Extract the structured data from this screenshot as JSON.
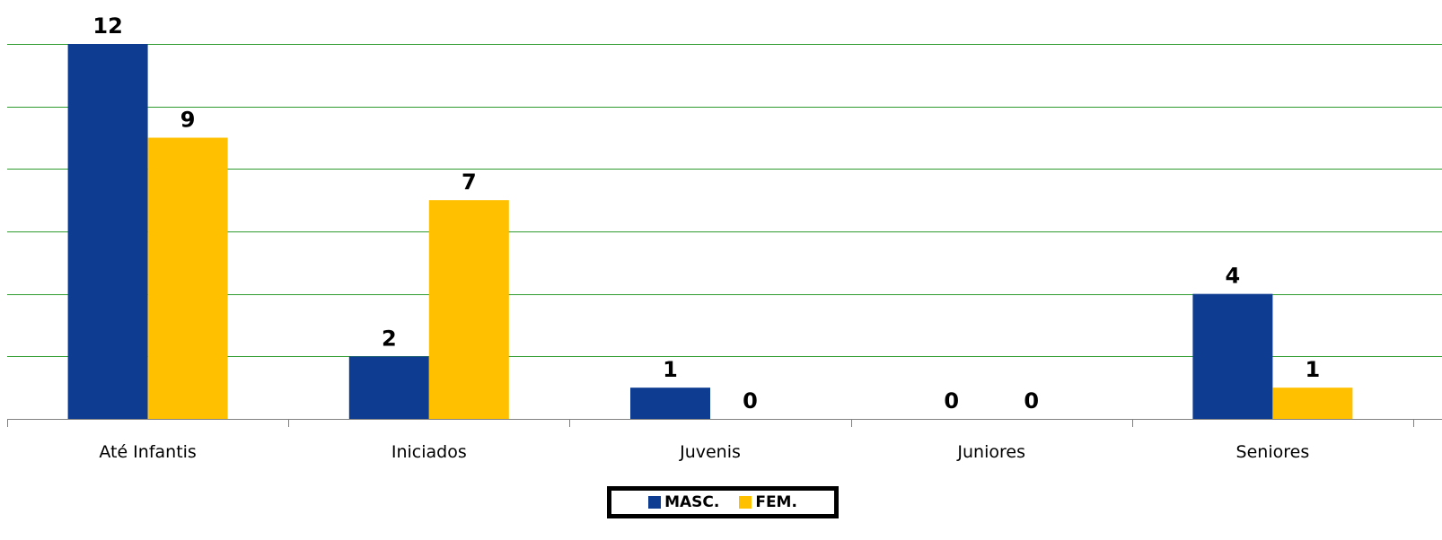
{
  "chart_data": {
    "type": "bar",
    "title": "",
    "xlabel": "",
    "ylabel": "",
    "categories": [
      "Até Infantis",
      "Iniciados",
      "Juvenis",
      "Juniores",
      "Seniores"
    ],
    "series": [
      {
        "name": "MASC.",
        "values": [
          12,
          2,
          1,
          0,
          4
        ],
        "color": "#0e3c91"
      },
      {
        "name": "FEM.",
        "values": [
          9,
          7,
          0,
          0,
          1
        ],
        "color": "#ffc000"
      }
    ],
    "ylim": [
      0,
      12
    ],
    "gridlines": [
      2,
      4,
      6,
      8,
      10,
      12
    ],
    "grid": true,
    "grid_color": "#2e9b2e",
    "legend_position": "bottom"
  }
}
